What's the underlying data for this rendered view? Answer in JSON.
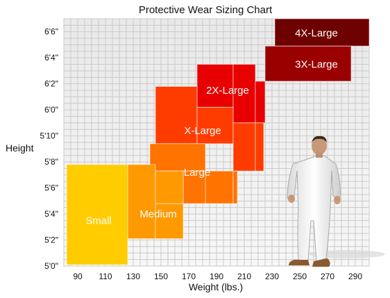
{
  "chart_data": {
    "type": "area",
    "title": "Protective Wear Sizing Chart",
    "xlabel": "Weight (lbs.)",
    "ylabel": "Height",
    "x_ticks": [
      90,
      110,
      130,
      150,
      170,
      190,
      210,
      230,
      250,
      270,
      290
    ],
    "y_ticks": [
      "5'0\"",
      "5'2\"",
      "5'4\"",
      "5'6\"",
      "5'8\"",
      "5'10\"",
      "6'0\"",
      "6'2\"",
      "6'4\"",
      "6'6\""
    ],
    "xlim": [
      80,
      300
    ],
    "ylim_inches": [
      60,
      79
    ],
    "grid": true,
    "sizes": [
      {
        "name": "4X-Large",
        "color": "#6e0000",
        "label_at": [
          262,
          77.9
        ],
        "rects": [
          [
            232,
            300,
            76.9,
            79
          ]
        ]
      },
      {
        "name": "3X-Large",
        "color": "#9a0000",
        "label_at": [
          262,
          75.5
        ],
        "rects": [
          [
            225,
            287,
            74.2,
            76.9
          ]
        ]
      },
      {
        "name": "2X-Large",
        "color": "#e80000",
        "label_at": [
          198,
          73.5
        ],
        "rects": [
          [
            176,
            202,
            72.2,
            75.5
          ],
          [
            202,
            218,
            71.0,
            75.5
          ],
          [
            218,
            225,
            71.0,
            74.2
          ]
        ]
      },
      {
        "name": "X-Large",
        "color": "#ff3c00",
        "label_at": [
          180,
          70.4
        ],
        "rects": [
          [
            146,
            176,
            69.4,
            73.8
          ],
          [
            176,
            202,
            69.4,
            72.2
          ],
          [
            202,
            218,
            67.3,
            71.0
          ],
          [
            218,
            224,
            67.3,
            71.0
          ]
        ]
      },
      {
        "name": "Large",
        "color": "#ff7300",
        "label_at": [
          176,
          67.2
        ],
        "rects": [
          [
            142,
            182,
            67.3,
            69.4
          ],
          [
            182,
            202,
            64.8,
            67.3
          ],
          [
            202,
            205,
            64.8,
            67.3
          ],
          [
            166,
            182,
            64.8,
            67.3
          ]
        ]
      },
      {
        "name": "Medium",
        "color": "#ff9900",
        "label_at": [
          148,
          64.0
        ],
        "rects": [
          [
            126,
            146,
            62.1,
            67.8
          ],
          [
            146,
            166,
            62.1,
            64.8
          ],
          [
            146,
            166,
            64.8,
            67.3
          ]
        ]
      },
      {
        "name": "Small",
        "color": "#ffcc00",
        "label_at": [
          105,
          63.5
        ],
        "rects": [
          [
            82,
            126,
            60.1,
            67.8
          ]
        ]
      }
    ]
  }
}
